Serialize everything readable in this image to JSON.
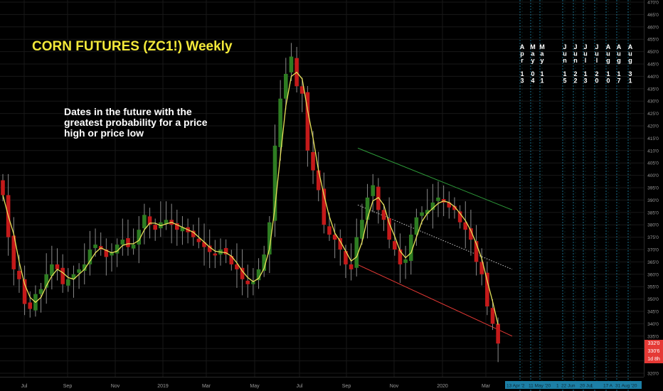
{
  "chart_data": {
    "type": "candlestick",
    "title": "CORN FUTURES (ZC1!) Weekly",
    "annotation": "Dates in the future with the greatest probability for a price high or price low",
    "x_tick_labels": [
      "Jul",
      "Sep",
      "Nov",
      "2019",
      "Mar",
      "May",
      "Jul",
      "Sep",
      "Nov",
      "2020",
      "Mar"
    ],
    "y_tick_labels": [
      "320'0",
      "325'0",
      "330'0",
      "335'0",
      "340'0",
      "345'0",
      "350'0",
      "355'0",
      "360'0",
      "365'0",
      "370'0",
      "375'0",
      "380'0",
      "385'0",
      "390'0",
      "395'0",
      "400'0",
      "405'0",
      "410'0",
      "415'0",
      "420'0",
      "425'0",
      "430'0",
      "435'0",
      "440'0",
      "445'0",
      "450'0",
      "455'0",
      "460'0",
      "465'0",
      "470'0"
    ],
    "ylim": [
      318,
      472
    ],
    "close": [
      392,
      375,
      362,
      358,
      348,
      346,
      352,
      354,
      360,
      364,
      362,
      356,
      358,
      360,
      362,
      364,
      370,
      372,
      370,
      367,
      369,
      372,
      374,
      371,
      372,
      378,
      384,
      380,
      378,
      381,
      382,
      380,
      378,
      379,
      377,
      375,
      373,
      371,
      369,
      368,
      370,
      368,
      364,
      362,
      358,
      356,
      357,
      362,
      368,
      381,
      412,
      431,
      441,
      448,
      436,
      433,
      410,
      402,
      394,
      380,
      376,
      374,
      370,
      364,
      362,
      375,
      382,
      391,
      396,
      386,
      382,
      374,
      370,
      364,
      366,
      376,
      383,
      385,
      386,
      389,
      391,
      389,
      387,
      386,
      381,
      378,
      374,
      365,
      360,
      347,
      340,
      332
    ],
    "price_labels": [
      {
        "text": "332'0",
        "color": "#e53935"
      },
      {
        "text": "330'6",
        "color": "#e53935"
      },
      {
        "text": "1d 8h",
        "color": "#e53935"
      }
    ],
    "moving_average": {
      "name": "",
      "color": "#e8e25a"
    },
    "trendlines": [
      {
        "color": "#2e9c3a",
        "style": "solid",
        "from": [
          0.0,
          411
        ],
        "to": [
          1.0,
          386
        ]
      },
      {
        "color": "#e53935",
        "style": "solid",
        "from": [
          0.0,
          364
        ],
        "to": [
          1.0,
          335
        ]
      },
      {
        "color": "#c9c9c9",
        "style": "dotted",
        "from": [
          0.0,
          388
        ],
        "to": [
          1.0,
          362
        ]
      }
    ],
    "future_cycle_dates": [
      {
        "vertical": "Apr 13",
        "chars": [
          "A",
          "p",
          "r",
          "",
          "1",
          "3"
        ]
      },
      {
        "vertical": "May 04",
        "chars": [
          "M",
          "a",
          "y",
          "",
          "0",
          "4"
        ]
      },
      {
        "vertical": "May 11",
        "chars": [
          "M",
          "a",
          "y",
          "",
          "1",
          "1"
        ]
      },
      {
        "vertical": "Jun 15",
        "chars": [
          "J",
          "u",
          "n",
          "",
          "1",
          "5"
        ]
      },
      {
        "vertical": "Jun 22",
        "chars": [
          "J",
          "u",
          "n",
          "",
          "2",
          "2"
        ]
      },
      {
        "vertical": "Jul 13",
        "chars": [
          "J",
          "u",
          "l",
          "",
          "1",
          "3"
        ]
      },
      {
        "vertical": "Jul 20",
        "chars": [
          "J",
          "u",
          "l",
          "",
          "2",
          "0"
        ]
      },
      {
        "vertical": "Aug 10",
        "chars": [
          "A",
          "u",
          "g",
          "",
          "1",
          "0"
        ]
      },
      {
        "vertical": "Aug 17",
        "chars": [
          "A",
          "u",
          "g",
          "",
          "1",
          "7"
        ]
      },
      {
        "vertical": "Aug 31",
        "chars": [
          "A",
          "u",
          "g",
          "",
          "3",
          "1"
        ]
      }
    ],
    "future_axis_labels": [
      "13 Apr '2",
      "11 May '20",
      "1",
      "22 Jun",
      "20 Jul",
      "1",
      "17 A",
      "31 Aug '20"
    ],
    "colors": {
      "up": "#2e7d22",
      "down": "#c41a1a",
      "cycle_line": "#29a8d8",
      "axis_highlight": "#1c7fa6",
      "background": "#000000"
    }
  }
}
